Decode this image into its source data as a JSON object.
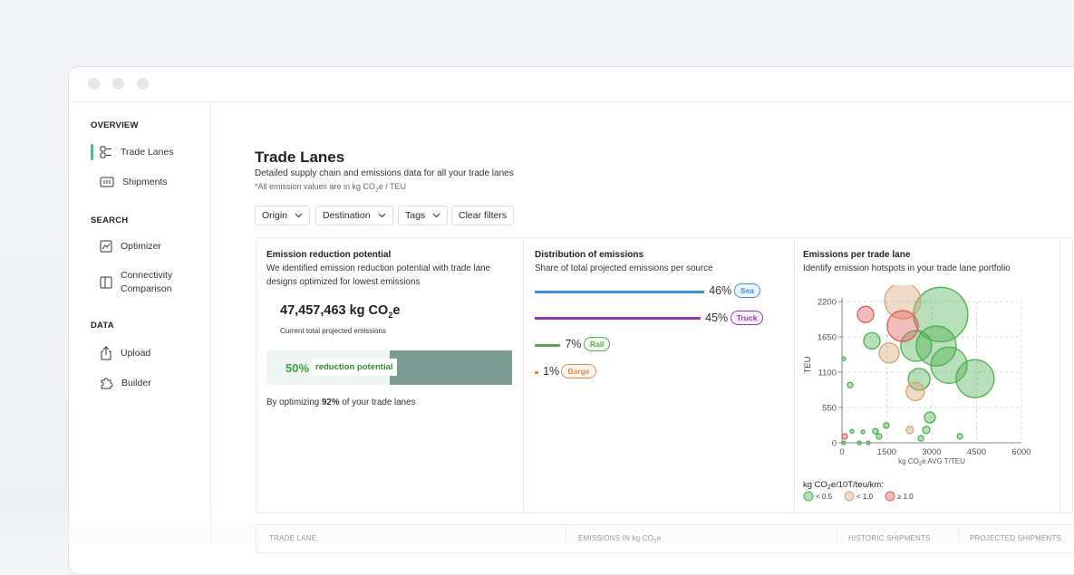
{
  "sidebar": {
    "sections": [
      {
        "title": "OVERVIEW",
        "items": [
          "Trade Lanes",
          "Shipments"
        ]
      },
      {
        "title": "SEARCH",
        "items": [
          "Optimizer",
          "Connectivity Comparison"
        ]
      },
      {
        "title": "DATA",
        "items": [
          "Upload",
          "Builder"
        ]
      }
    ]
  },
  "header": {
    "title": "Trade Lanes",
    "subtitle": "Detailed supply chain and emissions data for all your trade lanes",
    "note": [
      "*All emission values are in kg CO",
      "2",
      "e / TEU"
    ]
  },
  "filters": [
    "Origin",
    "Destination",
    "Tags",
    "Clear filters"
  ],
  "reduction": {
    "title": "Emission reduction potential",
    "description": "We identified emission reduction potential with trade lane designs optimized for lowest emissions",
    "total": [
      "47,457,463 kg CO",
      "2",
      "e"
    ],
    "total_caption": "Current total projected emissions",
    "potential": 50,
    "potential_label": "50%",
    "potential_text": "reduction potential",
    "footer": [
      "By optimizing ",
      "92%",
      " of your trade lanes"
    ]
  },
  "distribution": {
    "title": "Distribution of emissions",
    "subtitle": "Share of total projected emissions per source",
    "categories": [
      "Sea",
      "Truck",
      "Rail",
      "Barge"
    ],
    "values": [
      46,
      45,
      7,
      1
    ],
    "value_labels": [
      "46%",
      "45%",
      "7%",
      "1%"
    ],
    "colors": [
      "#3d8fd6",
      "#9a35b8",
      "#5aa84a",
      "#e8894a"
    ]
  },
  "chart_data": {
    "type": "scatter",
    "title": "Emissions per trade lane",
    "subtitle": "Identify emission hotspots in your trade lane portfolio",
    "x_label": [
      "kg CO",
      "2",
      "e AVG T/TEU"
    ],
    "y_label": "TEU",
    "legend_title": [
      "kg CO",
      "2",
      "e/10T/teu/km:"
    ],
    "xlim": [
      0,
      6000
    ],
    "xticks": [
      0,
      1500,
      3000,
      4500,
      6000
    ],
    "ylim": [
      0,
      2400
    ],
    "yticks": [
      0,
      550,
      1100,
      1650,
      2200
    ],
    "grid": true,
    "series": [
      {
        "name": "< 0.5",
        "color": "#4caf50",
        "x": [
          3300,
          1000,
          2480,
          3150,
          3580,
          4450,
          2580,
          270,
          60,
          2940,
          2820,
          1480,
          1120,
          700,
          330,
          3940,
          1240,
          2640,
          880,
          580,
          60
        ],
        "values": [
          2000,
          1590,
          1510,
          1510,
          1210,
          1000,
          990,
          900,
          1310,
          395,
          200,
          270,
          180,
          170,
          180,
          100,
          100,
          70,
          0,
          0,
          0
        ],
        "sizes": [
          30,
          9,
          17,
          22,
          20,
          21,
          12,
          3,
          2,
          6,
          4,
          3,
          3,
          2,
          2,
          3,
          3,
          3,
          2,
          2,
          2
        ]
      },
      {
        "name": "< 1.0",
        "color": "#d4a373",
        "x": [
          2030,
          1580,
          2450,
          2270
        ],
        "values": [
          2214,
          1400,
          800,
          200
        ],
        "sizes": [
          20,
          11,
          10,
          4
        ]
      },
      {
        "name": "≥ 1.0",
        "color": "#e05a5a",
        "x": [
          790,
          2030,
          90
        ],
        "values": [
          2000,
          1820,
          100
        ],
        "sizes": [
          9,
          17,
          3
        ]
      }
    ]
  },
  "table": {
    "columns": [
      [
        "TRADE LANE"
      ],
      [
        "EMISSIONS IN kg CO",
        "2",
        "e"
      ],
      [
        "HISTORIC SHIPMENTS"
      ],
      [
        "PROJECTED SHIPMENTS"
      ]
    ]
  }
}
